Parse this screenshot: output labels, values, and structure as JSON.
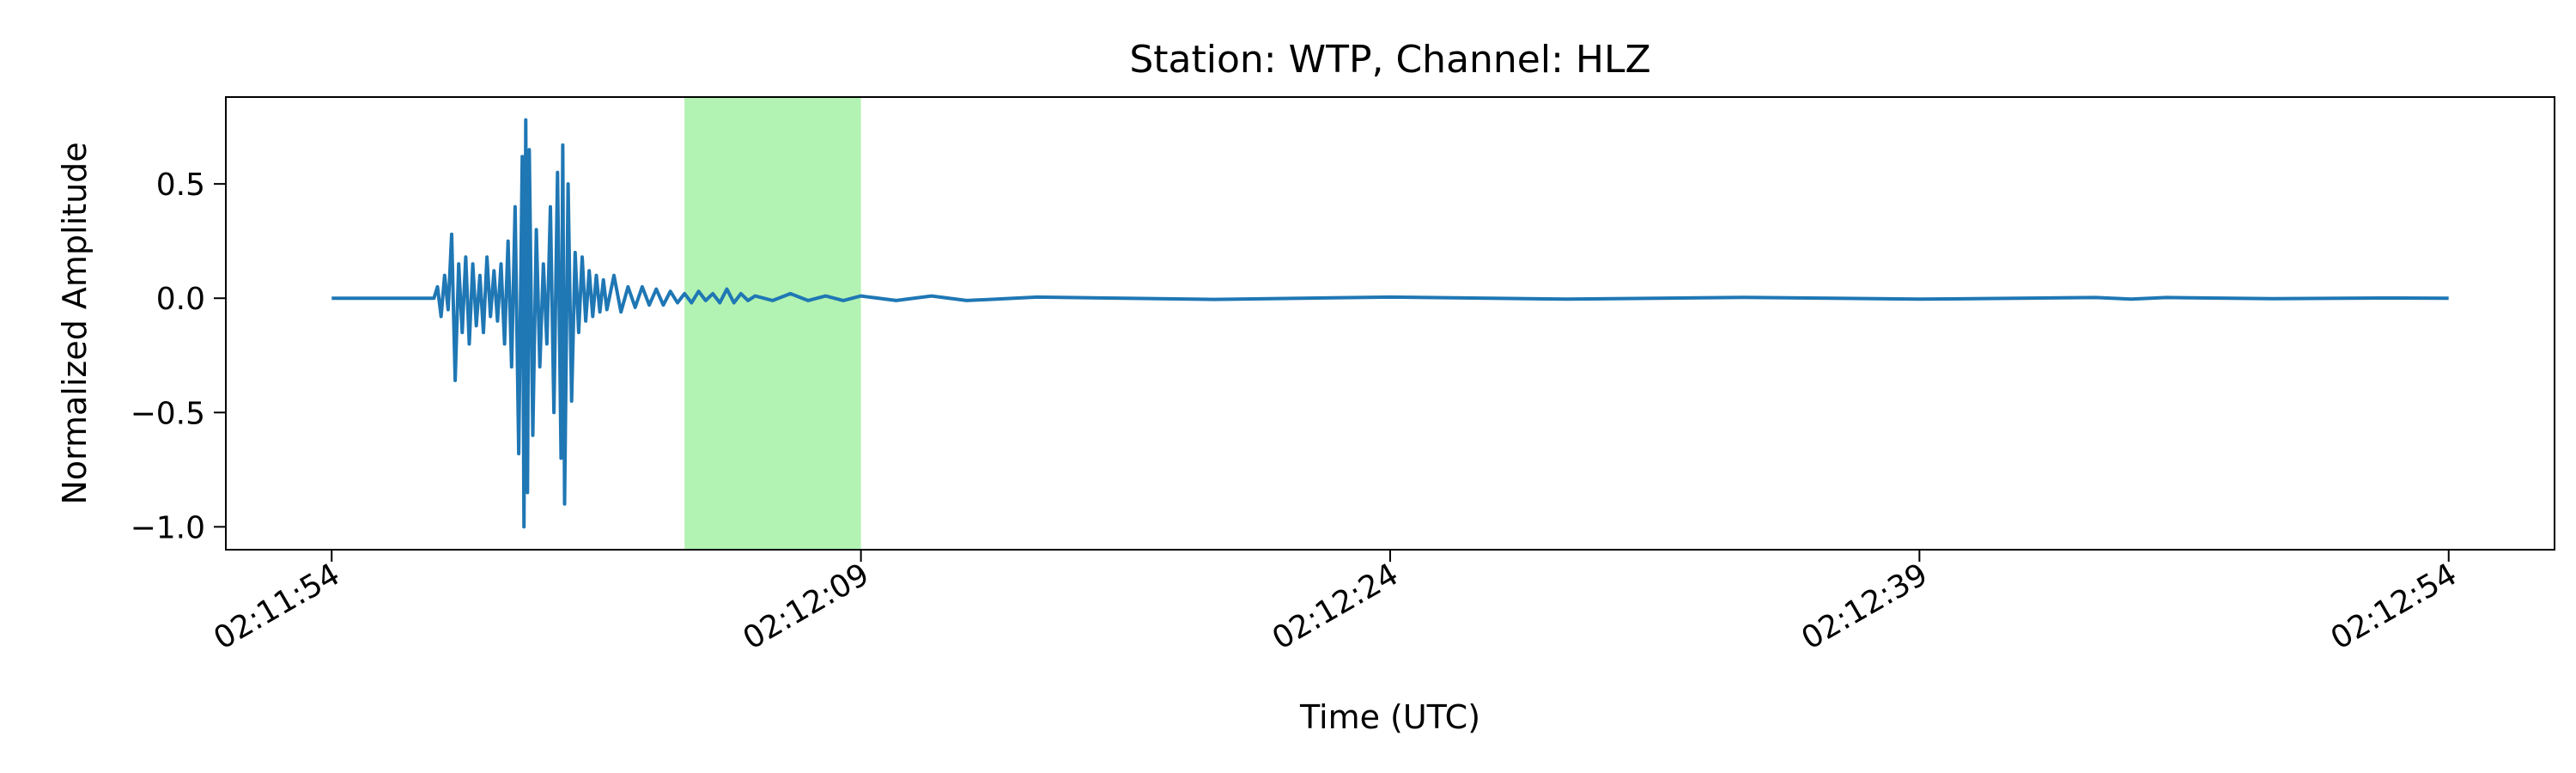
{
  "chart_data": {
    "type": "line",
    "title": "Station: WTP, Channel: HLZ",
    "xlabel": "Time (UTC)",
    "ylabel": "Normalized Amplitude",
    "x_ticks": [
      "02:11:54",
      "02:12:09",
      "02:12:24",
      "02:12:39",
      "02:12:54"
    ],
    "x_tick_seconds": [
      0,
      15,
      30,
      45,
      60
    ],
    "xlim_seconds": [
      -3,
      63
    ],
    "y_ticks": [
      0.5,
      0.0,
      -0.5,
      -1.0
    ],
    "y_tick_labels": [
      "0.5",
      "0.0",
      "−0.5",
      "−1.0"
    ],
    "ylim": [
      -1.1,
      0.88
    ],
    "grid": false,
    "highlight": {
      "start_s": 10.0,
      "end_s": 15.0,
      "color": "#b2f2b2"
    },
    "series": [
      {
        "color": "#1f77b4",
        "points": [
          [
            0.0,
            0.0
          ],
          [
            2.9,
            0.0
          ],
          [
            3.0,
            0.05
          ],
          [
            3.1,
            -0.08
          ],
          [
            3.2,
            0.1
          ],
          [
            3.3,
            -0.05
          ],
          [
            3.4,
            0.28
          ],
          [
            3.5,
            -0.36
          ],
          [
            3.6,
            0.15
          ],
          [
            3.7,
            -0.15
          ],
          [
            3.8,
            0.18
          ],
          [
            3.9,
            -0.2
          ],
          [
            4.0,
            0.15
          ],
          [
            4.1,
            -0.12
          ],
          [
            4.2,
            0.1
          ],
          [
            4.3,
            -0.15
          ],
          [
            4.4,
            0.18
          ],
          [
            4.5,
            -0.08
          ],
          [
            4.6,
            0.12
          ],
          [
            4.7,
            -0.1
          ],
          [
            4.8,
            0.15
          ],
          [
            4.9,
            -0.2
          ],
          [
            5.0,
            0.25
          ],
          [
            5.1,
            -0.3
          ],
          [
            5.2,
            0.4
          ],
          [
            5.3,
            -0.68
          ],
          [
            5.4,
            0.62
          ],
          [
            5.45,
            -1.0
          ],
          [
            5.5,
            0.78
          ],
          [
            5.55,
            -0.85
          ],
          [
            5.6,
            0.65
          ],
          [
            5.7,
            -0.6
          ],
          [
            5.8,
            0.3
          ],
          [
            5.9,
            -0.3
          ],
          [
            6.0,
            0.15
          ],
          [
            6.1,
            -0.2
          ],
          [
            6.2,
            0.4
          ],
          [
            6.3,
            -0.5
          ],
          [
            6.4,
            0.55
          ],
          [
            6.5,
            -0.7
          ],
          [
            6.55,
            0.67
          ],
          [
            6.6,
            -0.9
          ],
          [
            6.7,
            0.5
          ],
          [
            6.8,
            -0.45
          ],
          [
            6.9,
            0.2
          ],
          [
            7.0,
            -0.15
          ],
          [
            7.1,
            0.18
          ],
          [
            7.2,
            -0.1
          ],
          [
            7.3,
            0.12
          ],
          [
            7.4,
            -0.08
          ],
          [
            7.5,
            0.1
          ],
          [
            7.6,
            -0.06
          ],
          [
            7.7,
            0.08
          ],
          [
            7.8,
            -0.05
          ],
          [
            8.0,
            0.1
          ],
          [
            8.2,
            -0.06
          ],
          [
            8.4,
            0.05
          ],
          [
            8.6,
            -0.04
          ],
          [
            8.8,
            0.05
          ],
          [
            9.0,
            -0.03
          ],
          [
            9.2,
            0.04
          ],
          [
            9.4,
            -0.03
          ],
          [
            9.6,
            0.03
          ],
          [
            9.8,
            -0.02
          ],
          [
            10.0,
            0.02
          ],
          [
            10.2,
            -0.02
          ],
          [
            10.4,
            0.03
          ],
          [
            10.6,
            -0.01
          ],
          [
            10.8,
            0.02
          ],
          [
            11.0,
            -0.02
          ],
          [
            11.2,
            0.04
          ],
          [
            11.4,
            -0.02
          ],
          [
            11.6,
            0.02
          ],
          [
            11.8,
            -0.01
          ],
          [
            12.0,
            0.01
          ],
          [
            12.5,
            -0.01
          ],
          [
            13.0,
            0.02
          ],
          [
            13.5,
            -0.01
          ],
          [
            14.0,
            0.01
          ],
          [
            14.5,
            -0.01
          ],
          [
            15.0,
            0.01
          ],
          [
            16.0,
            -0.01
          ],
          [
            17.0,
            0.01
          ],
          [
            18.0,
            -0.01
          ],
          [
            20.0,
            0.005
          ],
          [
            25.0,
            -0.005
          ],
          [
            30.0,
            0.005
          ],
          [
            35.0,
            -0.004
          ],
          [
            40.0,
            0.004
          ],
          [
            45.0,
            -0.004
          ],
          [
            50.0,
            0.003
          ],
          [
            51.0,
            -0.004
          ],
          [
            52.0,
            0.003
          ],
          [
            55.0,
            -0.002
          ],
          [
            58.0,
            0.001
          ],
          [
            60.0,
            0.0
          ]
        ]
      }
    ]
  }
}
